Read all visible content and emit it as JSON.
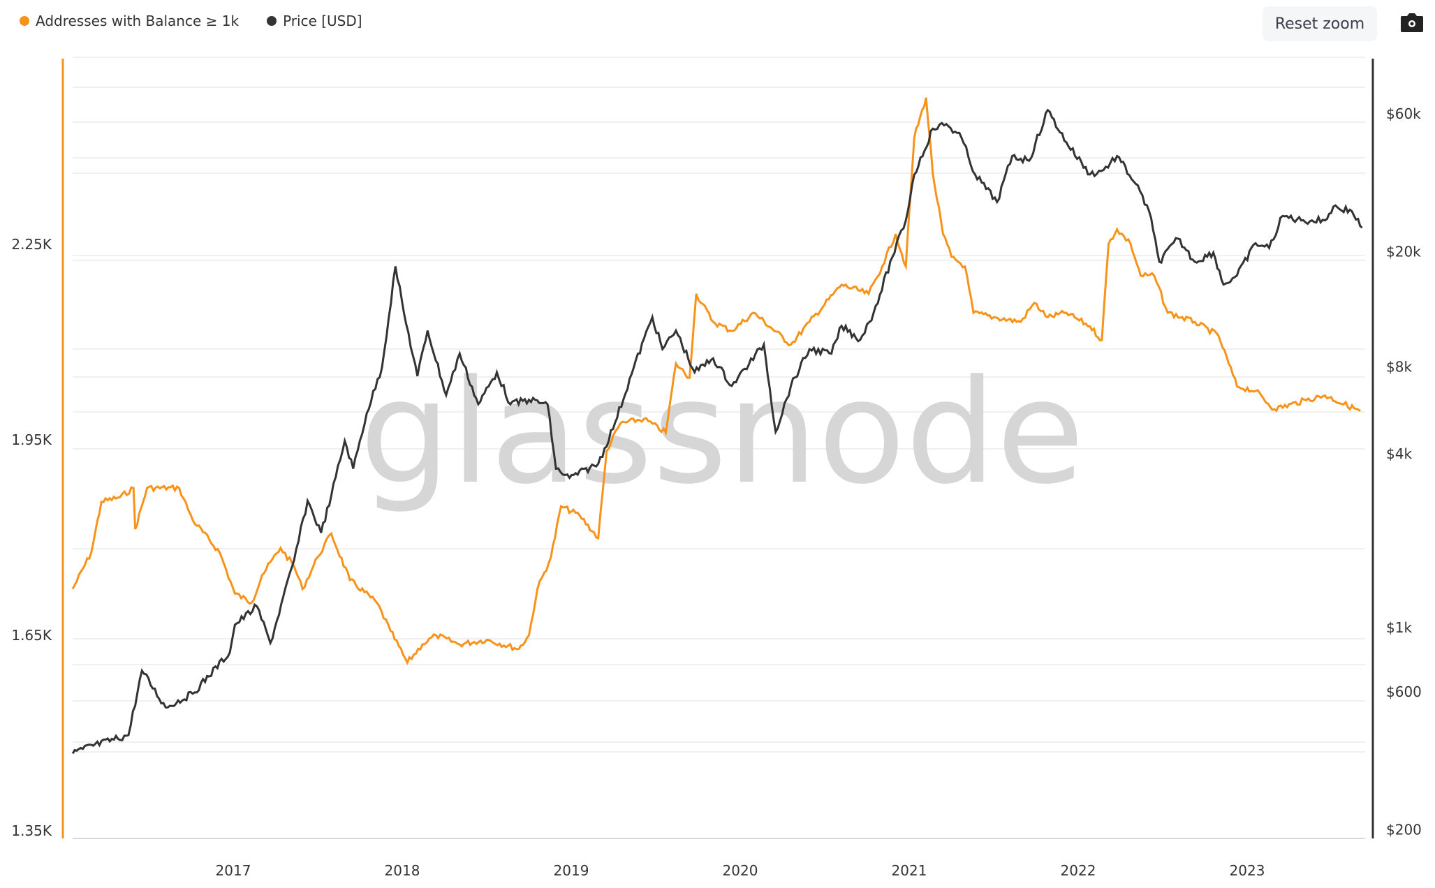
{
  "legend": [
    {
      "label": "Addresses with Balance ≥ 1k",
      "color": "#f7931a"
    },
    {
      "label": "Price [USD]",
      "color": "#333333"
    }
  ],
  "toolbar": {
    "reset_label": "Reset zoom",
    "camera_icon": "camera-icon"
  },
  "watermark": "glassnode",
  "chart_data": {
    "type": "line",
    "title": "",
    "x_ticks": [
      "2017",
      "2018",
      "2019",
      "2020",
      "2021",
      "2022",
      "2023"
    ],
    "xlim": [
      2016.05,
      2023.7
    ],
    "y_left": {
      "label": "Addresses with Balance ≥ 1k",
      "ticks": [
        "1.35K",
        "1.65K",
        "1.95K",
        "2.25K"
      ],
      "tick_values": [
        1350,
        1650,
        1950,
        2250
      ],
      "scale": "linear"
    },
    "y_right": {
      "label": "Price [USD]",
      "ticks": [
        "$200",
        "$600",
        "$1k",
        "$4k",
        "$8k",
        "$20k",
        "$60k"
      ],
      "tick_values": [
        200,
        600,
        1000,
        4000,
        8000,
        20000,
        60000
      ],
      "scale": "log"
    },
    "grid": true,
    "legend_position": "top-left",
    "series": [
      {
        "name": "Addresses with Balance ≥ 1k",
        "axis": "left",
        "color": "#f7931a",
        "x": [
          2016.05,
          2016.16,
          2016.22,
          2016.33,
          2016.41,
          2016.42,
          2016.49,
          2016.68,
          2016.76,
          2016.92,
          2017.01,
          2017.11,
          2017.17,
          2017.28,
          2017.36,
          2017.41,
          2017.5,
          2017.58,
          2017.69,
          2017.85,
          2017.93,
          2018.03,
          2018.12,
          2018.2,
          2018.34,
          2018.5,
          2018.69,
          2018.75,
          2018.8,
          2018.88,
          2018.94,
          2019.05,
          2019.16,
          2019.21,
          2019.29,
          2019.43,
          2019.56,
          2019.62,
          2019.7,
          2019.74,
          2019.84,
          2019.95,
          2020.08,
          2020.3,
          2020.41,
          2020.6,
          2020.76,
          2020.84,
          2020.92,
          2020.98,
          2021.03,
          2021.1,
          2021.14,
          2021.2,
          2021.25,
          2021.33,
          2021.38,
          2021.5,
          2021.66,
          2021.74,
          2021.82,
          2021.93,
          2022.07,
          2022.14,
          2022.18,
          2022.23,
          2022.31,
          2022.37,
          2022.45,
          2022.53,
          2022.69,
          2022.83,
          2022.94,
          2023.05,
          2023.16,
          2023.35,
          2023.46,
          2023.67
        ],
        "values": [
          1721,
          1777,
          1855,
          1862,
          1876,
          1813,
          1876,
          1876,
          1827,
          1777,
          1714,
          1700,
          1742,
          1784,
          1756,
          1721,
          1770,
          1806,
          1735,
          1700,
          1657,
          1608,
          1636,
          1650,
          1636,
          1643,
          1629,
          1650,
          1721,
          1770,
          1848,
          1834,
          1799,
          1933,
          1975,
          1982,
          1961,
          2067,
          2045,
          2174,
          2131,
          2117,
          2145,
          2096,
          2131,
          2188,
          2174,
          2216,
          2266,
          2216,
          2414,
          2475,
          2358,
          2266,
          2231,
          2216,
          2145,
          2138,
          2131,
          2160,
          2138,
          2145,
          2124,
          2103,
          2251,
          2273,
          2251,
          2202,
          2202,
          2145,
          2131,
          2110,
          2032,
          2025,
          1997,
          2011,
          2018,
          1994
        ]
      },
      {
        "name": "Price [USD]",
        "axis": "right",
        "color": "#333333",
        "x": [
          2016.05,
          2016.11,
          2016.38,
          2016.46,
          2016.6,
          2016.76,
          2016.98,
          2017.01,
          2017.14,
          2017.22,
          2017.36,
          2017.44,
          2017.52,
          2017.58,
          2017.66,
          2017.71,
          2017.79,
          2017.88,
          2017.96,
          2018.01,
          2018.09,
          2018.15,
          2018.26,
          2018.34,
          2018.45,
          2018.56,
          2018.64,
          2018.75,
          2018.86,
          2018.91,
          2018.99,
          2019.16,
          2019.26,
          2019.37,
          2019.48,
          2019.54,
          2019.62,
          2019.73,
          2019.84,
          2019.95,
          2020.14,
          2020.21,
          2020.3,
          2020.41,
          2020.54,
          2020.6,
          2020.71,
          2020.79,
          2020.9,
          2020.98,
          2021.03,
          2021.14,
          2021.22,
          2021.31,
          2021.39,
          2021.52,
          2021.61,
          2021.71,
          2021.82,
          2021.93,
          2022.07,
          2022.15,
          2022.23,
          2022.34,
          2022.42,
          2022.48,
          2022.59,
          2022.69,
          2022.8,
          2022.86,
          2022.94,
          2023.05,
          2023.13,
          2023.21,
          2023.32,
          2023.46,
          2023.51,
          2023.62,
          2023.68
        ],
        "values": [
          367,
          381,
          425,
          710,
          530,
          591,
          822,
          1024,
          1186,
          885,
          1710,
          2750,
          2130,
          2860,
          4430,
          3550,
          5520,
          7940,
          17800,
          12300,
          7420,
          10670,
          6380,
          8880,
          5930,
          7650,
          5930,
          6150,
          5930,
          3550,
          3300,
          3690,
          5130,
          7940,
          11880,
          9200,
          10670,
          7650,
          8550,
          6870,
          9550,
          4760,
          6870,
          9200,
          8880,
          11070,
          9910,
          12330,
          19140,
          25650,
          36980,
          53300,
          55300,
          49550,
          36980,
          29700,
          42850,
          41300,
          61800,
          47800,
          37000,
          38350,
          42850,
          34360,
          27600,
          18450,
          22200,
          18450,
          19860,
          15390,
          16550,
          21400,
          20600,
          26600,
          25650,
          25650,
          28640,
          27600,
          24210
        ]
      }
    ]
  }
}
